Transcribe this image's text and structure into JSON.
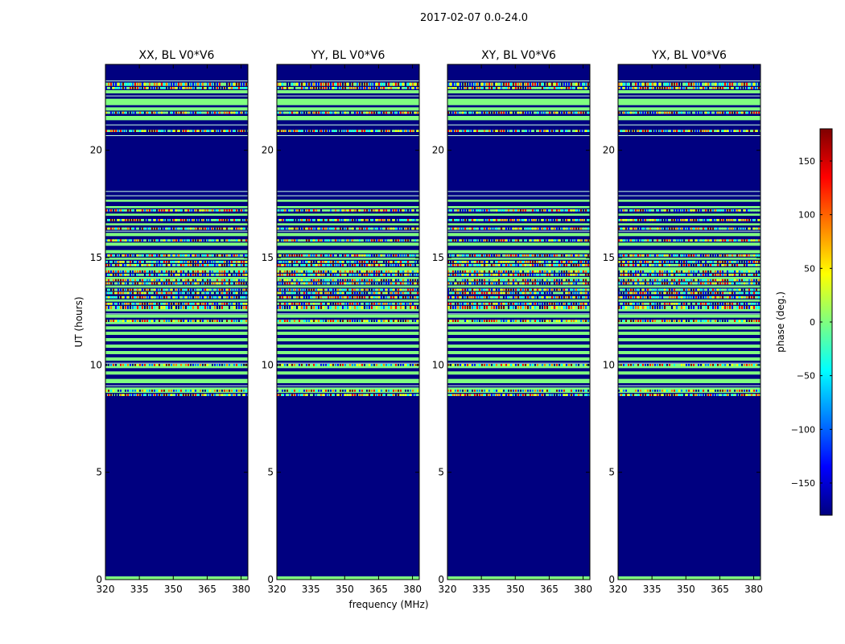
{
  "figure": {
    "title": "2017-02-07 0.0-24.0",
    "xlabel": "frequency (MHz)",
    "ylabel": "UT (hours)",
    "colorbar_label": "phase (deg.)",
    "colorbar_colors": [
      "#00007f",
      "#0000ff",
      "#007fff",
      "#00ffff",
      "#7fff7f",
      "#ffff00",
      "#ff7f00",
      "#ff0000",
      "#7f0000"
    ],
    "background_color": "#000080",
    "flat_phase_color": "#80ff80"
  },
  "chart_data": [
    {
      "type": "heatmap",
      "title": "XX, BL V0*V6",
      "xlabel": "",
      "ylabel": "UT (hours)",
      "xlim": [
        320,
        383
      ],
      "ylim": [
        0,
        24
      ],
      "xticks": [
        320,
        335,
        350,
        365,
        380
      ],
      "yticks": [
        0,
        5,
        10,
        15,
        20
      ],
      "colorbar": {
        "label": "phase (deg.)",
        "range": [
          -180,
          180
        ],
        "ticks": [
          -150,
          -100,
          -50,
          0,
          50,
          100,
          150
        ]
      }
    },
    {
      "type": "heatmap",
      "title": "YY, BL V0*V6",
      "xlabel": "frequency (MHz)",
      "ylabel": "",
      "xlim": [
        320,
        383
      ],
      "ylim": [
        0,
        24
      ],
      "xticks": [
        320,
        335,
        350,
        365,
        380
      ],
      "yticks": [
        0,
        5,
        10,
        15,
        20
      ]
    },
    {
      "type": "heatmap",
      "title": "XY, BL V0*V6",
      "xlabel": "",
      "ylabel": "",
      "xlim": [
        320,
        383
      ],
      "ylim": [
        0,
        24
      ],
      "xticks": [
        320,
        335,
        350,
        365,
        380
      ],
      "yticks": [
        0,
        5,
        10,
        15,
        20
      ]
    },
    {
      "type": "heatmap",
      "title": "YX, BL V0*V6",
      "xlabel": "",
      "ylabel": "",
      "xlim": [
        320,
        383
      ],
      "ylim": [
        0,
        24
      ],
      "xticks": [
        320,
        335,
        350,
        365,
        380
      ],
      "yticks": [
        0,
        5,
        10,
        15,
        20
      ]
    }
  ],
  "phase_bands": {
    "units": "UT hours",
    "flat": [
      [
        8.7,
        8.95
      ],
      [
        9.15,
        9.35
      ],
      [
        9.55,
        9.7
      ],
      [
        9.85,
        10.0
      ],
      [
        10.2,
        10.35
      ],
      [
        10.5,
        10.65
      ],
      [
        10.8,
        10.95
      ],
      [
        11.1,
        11.25
      ],
      [
        11.4,
        11.55
      ],
      [
        11.65,
        11.8
      ],
      [
        11.9,
        12.1
      ],
      [
        12.2,
        12.35
      ],
      [
        12.5,
        12.6
      ],
      [
        12.95,
        13.05
      ],
      [
        13.6,
        13.7
      ],
      [
        14.0,
        14.1
      ],
      [
        14.4,
        14.55
      ],
      [
        14.9,
        15.0
      ],
      [
        15.2,
        15.35
      ],
      [
        15.55,
        15.7
      ],
      [
        16.0,
        16.15
      ],
      [
        16.5,
        16.6
      ],
      [
        16.95,
        17.05
      ],
      [
        17.3,
        17.4
      ],
      [
        17.6,
        17.7
      ],
      [
        21.4,
        21.6
      ],
      [
        21.85,
        22.0
      ],
      [
        22.1,
        22.4
      ],
      [
        22.65,
        22.8
      ],
      [
        0.0,
        0.15
      ]
    ],
    "noisy": [
      [
        8.55,
        8.65
      ],
      [
        8.75,
        8.85
      ],
      [
        9.95,
        10.05
      ],
      [
        12.0,
        12.1
      ],
      [
        12.6,
        12.75
      ],
      [
        12.8,
        12.9
      ],
      [
        13.1,
        13.2
      ],
      [
        13.3,
        13.4
      ],
      [
        13.45,
        13.55
      ],
      [
        13.75,
        13.85
      ],
      [
        13.9,
        14.0
      ],
      [
        14.15,
        14.25
      ],
      [
        14.3,
        14.4
      ],
      [
        14.6,
        14.7
      ],
      [
        14.75,
        14.85
      ],
      [
        15.05,
        15.15
      ],
      [
        15.75,
        15.85
      ],
      [
        16.3,
        16.4
      ],
      [
        16.7,
        16.8
      ],
      [
        17.15,
        17.25
      ],
      [
        20.85,
        20.95
      ],
      [
        21.7,
        21.8
      ],
      [
        22.85,
        22.95
      ],
      [
        23.0,
        23.15
      ]
    ],
    "thin_lines": [
      18.1,
      17.9,
      21.2,
      20.7,
      9.05,
      10.1,
      12.4,
      16.25,
      22.55,
      23.25
    ]
  }
}
